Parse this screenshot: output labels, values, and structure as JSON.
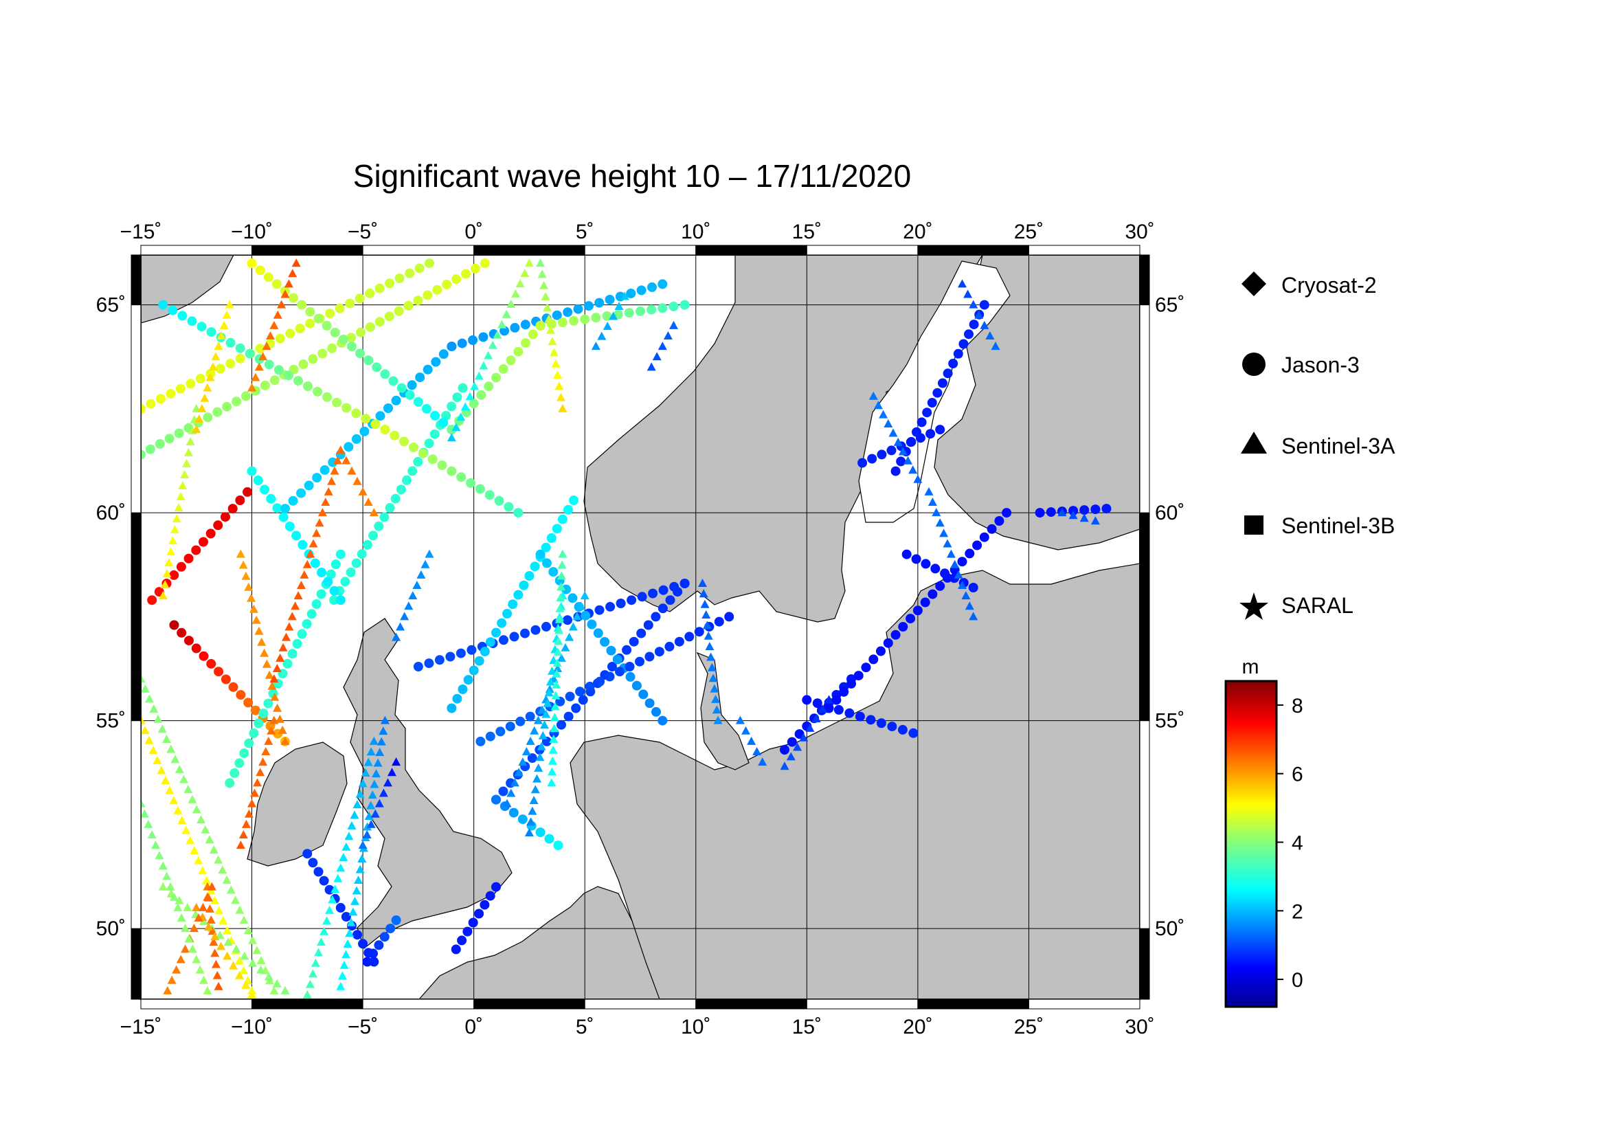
{
  "title": "Significant wave height 10 – 17/11/2020",
  "map": {
    "lon_range": [
      -15,
      30
    ],
    "lat_range": [
      48.3,
      66.2
    ],
    "lon_ticks": [
      -15,
      -10,
      -5,
      0,
      5,
      10,
      15,
      20,
      25,
      30
    ],
    "lat_ticks": [
      50,
      55,
      60,
      65
    ],
    "lon_tick_labels": [
      "−15˚",
      "−10˚",
      "−5˚",
      "0˚",
      "5˚",
      "10˚",
      "15˚",
      "20˚",
      "25˚",
      "30˚"
    ],
    "lat_tick_labels": [
      "50˚",
      "55˚",
      "60˚",
      "65˚"
    ],
    "land_color": "#c0c0c0",
    "sea_color": "#ffffff",
    "grid": true
  },
  "legend": {
    "items": [
      {
        "label": "Cryosat-2",
        "icon": "diamond-icon"
      },
      {
        "label": "Jason-3",
        "icon": "circle-icon"
      },
      {
        "label": "Sentinel-3A",
        "icon": "triangle-icon"
      },
      {
        "label": "Sentinel-3B",
        "icon": "square-icon"
      },
      {
        "label": "SARAL",
        "icon": "star-icon"
      }
    ]
  },
  "colorbar": {
    "unit": "m",
    "range": [
      -0.8,
      8.7
    ],
    "ticks": [
      0,
      2,
      4,
      6,
      8
    ],
    "tick_labels": [
      "0",
      "2",
      "4",
      "6",
      "8"
    ],
    "colormap": "jet"
  },
  "chart_data": {
    "type": "scatter",
    "title": "Significant wave height 10 – 17/11/2020",
    "x_label": "",
    "y_label": "",
    "xlim": [
      -15,
      30
    ],
    "ylim": [
      48.3,
      66.2
    ],
    "value_unit": "m",
    "series": [
      {
        "name": "Jason-3",
        "marker": "circle",
        "tracks": [
          {
            "from": [
              -14.5,
              57.9
            ],
            "to": [
              -10.2,
              60.5
            ],
            "values": [
              7.4,
              7.8
            ]
          },
          {
            "from": [
              -13.5,
              57.3
            ],
            "to": [
              -8.5,
              54.5
            ],
            "values": [
              8.1,
              5.8
            ]
          },
          {
            "from": [
              -11.0,
              53.5
            ],
            "to": [
              -6.0,
              59.0
            ],
            "values": [
              3.3,
              3.0
            ]
          },
          {
            "from": [
              -6.3,
              57.9
            ],
            "to": [
              -0.5,
              63.0
            ],
            "values": [
              3.1,
              3.2
            ]
          },
          {
            "from": [
              -6.0,
              57.9
            ],
            "to": [
              -10.0,
              61.0
            ],
            "values": [
              2.6,
              2.9
            ]
          },
          {
            "from": [
              -8.5,
              60.1
            ],
            "to": [
              -1.0,
              64.0
            ],
            "values": [
              2.4,
              2.0
            ]
          },
          {
            "from": [
              -1.0,
              64.0
            ],
            "to": [
              8.5,
              65.5
            ],
            "values": [
              1.8,
              2.1
            ]
          },
          {
            "from": [
              -15.0,
              61.4
            ],
            "to": [
              0.5,
              66.0
            ],
            "values": [
              3.9,
              4.9
            ]
          },
          {
            "from": [
              -15.0,
              62.5
            ],
            "to": [
              -2.0,
              66.0
            ],
            "values": [
              5.0,
              4.6
            ]
          },
          {
            "from": [
              -14.0,
              65.0
            ],
            "to": [
              -4.0,
              62.0
            ],
            "values": [
              2.6,
              4.8
            ]
          },
          {
            "from": [
              -4.0,
              62.0
            ],
            "to": [
              2.0,
              60.0
            ],
            "values": [
              4.8,
              3.3
            ]
          },
          {
            "from": [
              -10.0,
              66.0
            ],
            "to": [
              -1.0,
              62.0
            ],
            "values": [
              5.1,
              2.6
            ]
          },
          {
            "from": [
              -1.0,
              62.0
            ],
            "to": [
              3.0,
              64.5
            ],
            "values": [
              3.8,
              4.6
            ]
          },
          {
            "from": [
              3.0,
              64.5
            ],
            "to": [
              9.5,
              65.0
            ],
            "values": [
              4.6,
              3.3
            ]
          },
          {
            "from": [
              -2.5,
              56.3
            ],
            "to": [
              9.5,
              58.3
            ],
            "values": [
              1.1,
              0.8
            ]
          },
          {
            "from": [
              -1.0,
              55.3
            ],
            "to": [
              4.5,
              60.3
            ],
            "values": [
              2.1,
              2.8
            ]
          },
          {
            "from": [
              1.0,
              53.1
            ],
            "to": [
              9.5,
              58.3
            ],
            "values": [
              1.1,
              0.8
            ]
          },
          {
            "from": [
              1.0,
              53.1
            ],
            "to": [
              3.8,
              52.0
            ],
            "values": [
              1.5,
              2.8
            ]
          },
          {
            "from": [
              3.0,
              59.0
            ],
            "to": [
              8.5,
              55.0
            ],
            "values": [
              2.3,
              1.6
            ]
          },
          {
            "from": [
              0.3,
              54.5
            ],
            "to": [
              11.5,
              57.5
            ],
            "values": [
              1.4,
              0.7
            ]
          },
          {
            "from": [
              -0.8,
              49.5
            ],
            "to": [
              1.0,
              51.0
            ],
            "values": [
              0.6,
              0.6
            ]
          },
          {
            "from": [
              -4.8,
              49.2
            ],
            "to": [
              -3.5,
              50.2
            ],
            "values": [
              0.6,
              1.4
            ]
          },
          {
            "from": [
              -7.5,
              51.8
            ],
            "to": [
              -4.5,
              49.2
            ],
            "values": [
              0.9,
              0.7
            ]
          },
          {
            "from": [
              14.0,
              54.3
            ],
            "to": [
              17.0,
              56.0
            ],
            "values": [
              0.5,
              0.6
            ]
          },
          {
            "from": [
              15.0,
              55.5
            ],
            "to": [
              19.8,
              54.7
            ],
            "values": [
              0.5,
              0.8
            ]
          },
          {
            "from": [
              16.0,
              55.3
            ],
            "to": [
              24.0,
              60.0
            ],
            "values": [
              0.5,
              0.5
            ]
          },
          {
            "from": [
              19.5,
              59.0
            ],
            "to": [
              22.5,
              58.2
            ],
            "values": [
              0.5,
              0.6
            ]
          },
          {
            "from": [
              25.5,
              60.0
            ],
            "to": [
              28.5,
              60.1
            ],
            "values": [
              0.5,
              0.6
            ]
          },
          {
            "from": [
              17.5,
              61.2
            ],
            "to": [
              21.0,
              62.0
            ],
            "values": [
              0.7,
              0.6
            ]
          },
          {
            "from": [
              19.0,
              61.0
            ],
            "to": [
              23.0,
              65.0
            ],
            "values": [
              0.6,
              0.7
            ]
          }
        ]
      },
      {
        "name": "Sentinel-3A",
        "marker": "triangle",
        "tracks": [
          {
            "from": [
              -15.0,
              56.0
            ],
            "to": [
              -9.0,
              48.5
            ],
            "values": [
              4.0,
              4.2
            ]
          },
          {
            "from": [
              -15.0,
              55.0
            ],
            "to": [
              -10.0,
              48.5
            ],
            "values": [
              5.3,
              5.0
            ]
          },
          {
            "from": [
              -14.0,
              51.0
            ],
            "to": [
              -8.5,
              48.5
            ],
            "values": [
              4.2,
              4.0
            ]
          },
          {
            "from": [
              -12.0,
              51.0
            ],
            "to": [
              -11.5,
              48.6
            ],
            "values": [
              6.4,
              6.7
            ]
          },
          {
            "from": [
              -12.5,
              50.5
            ],
            "to": [
              -10.0,
              48.4
            ],
            "values": [
              6.1,
              5.2
            ]
          },
          {
            "from": [
              -13.8,
              48.5
            ],
            "to": [
              -11.8,
              51.0
            ],
            "values": [
              6.3,
              6.6
            ]
          },
          {
            "from": [
              -15.0,
              53.0
            ],
            "to": [
              -12.0,
              48.5
            ],
            "values": [
              3.9,
              4.2
            ]
          },
          {
            "from": [
              -10.5,
              52.0
            ],
            "to": [
              -9.0,
              55.0
            ],
            "values": [
              6.7,
              6.5
            ]
          },
          {
            "from": [
              -10.5,
              59.0
            ],
            "to": [
              -8.5,
              54.5
            ],
            "values": [
              6.0,
              6.4
            ]
          },
          {
            "from": [
              -9.0,
              56.0
            ],
            "to": [
              -6.0,
              61.5
            ],
            "values": [
              6.8,
              6.5
            ]
          },
          {
            "from": [
              -6.0,
              61.5
            ],
            "to": [
              -4.5,
              60.0
            ],
            "values": [
              6.5,
              6.3
            ]
          },
          {
            "from": [
              -12.5,
              62.5
            ],
            "to": [
              -14.0,
              58.0
            ],
            "values": [
              4.3,
              5.4
            ]
          },
          {
            "from": [
              -11.0,
              65.0
            ],
            "to": [
              -12.5,
              62.0
            ],
            "values": [
              5.2,
              5.6
            ]
          },
          {
            "from": [
              -8.0,
              66.0
            ],
            "to": [
              -10.0,
              63.0
            ],
            "values": [
              6.8,
              6.3
            ]
          },
          {
            "from": [
              -6.0,
              48.6
            ],
            "to": [
              -4.0,
              55.0
            ],
            "values": [
              2.8,
              1.5
            ]
          },
          {
            "from": [
              -7.5,
              48.4
            ],
            "to": [
              -4.5,
              54.5
            ],
            "values": [
              3.5,
              1.8
            ]
          },
          {
            "from": [
              -5.0,
              52.0
            ],
            "to": [
              -3.5,
              54.0
            ],
            "values": [
              1.5,
              0.4
            ]
          },
          {
            "from": [
              -3.5,
              57.0
            ],
            "to": [
              -2.0,
              59.0
            ],
            "values": [
              1.5,
              1.8
            ]
          },
          {
            "from": [
              -1.0,
              61.8
            ],
            "to": [
              2.5,
              66.0
            ],
            "values": [
              2.3,
              4.6
            ]
          },
          {
            "from": [
              1.5,
              53.0
            ],
            "to": [
              5.0,
              58.0
            ],
            "values": [
              1.6,
              2.2
            ]
          },
          {
            "from": [
              2.5,
              52.3
            ],
            "to": [
              4.0,
              58.0
            ],
            "values": [
              1.6,
              2.8
            ]
          },
          {
            "from": [
              3.5,
              53.5
            ],
            "to": [
              4.0,
              59.0
            ],
            "values": [
              2.8,
              3.5
            ]
          },
          {
            "from": [
              3.0,
              66.0
            ],
            "to": [
              4.0,
              62.5
            ],
            "values": [
              4.0,
              5.5
            ]
          },
          {
            "from": [
              5.5,
              64.0
            ],
            "to": [
              6.8,
              65.2
            ],
            "values": [
              1.8,
              2.3
            ]
          },
          {
            "from": [
              8.0,
              63.5
            ],
            "to": [
              9.0,
              64.5
            ],
            "values": [
              1.1,
              1.3
            ]
          },
          {
            "from": [
              10.3,
              58.3
            ],
            "to": [
              11.0,
              55.0
            ],
            "values": [
              1.2,
              1.7
            ]
          },
          {
            "from": [
              12.0,
              55.0
            ],
            "to": [
              13.0,
              54.0
            ],
            "values": [
              1.5,
              1.4
            ]
          },
          {
            "from": [
              14.0,
              53.9
            ],
            "to": [
              16.0,
              55.5
            ],
            "values": [
              1.2,
              0.8
            ]
          },
          {
            "from": [
              18.0,
              62.8
            ],
            "to": [
              20.0,
              60.8
            ],
            "values": [
              1.5,
              1.3
            ]
          },
          {
            "from": [
              20.5,
              60.5
            ],
            "to": [
              22.5,
              57.5
            ],
            "values": [
              1.4,
              1.3
            ]
          },
          {
            "from": [
              22.0,
              65.5
            ],
            "to": [
              23.5,
              64.0
            ],
            "values": [
              1.0,
              1.4
            ]
          },
          {
            "from": [
              26.5,
              60.0
            ],
            "to": [
              28.0,
              59.8
            ],
            "values": [
              1.1,
              1.2
            ]
          }
        ]
      }
    ]
  }
}
